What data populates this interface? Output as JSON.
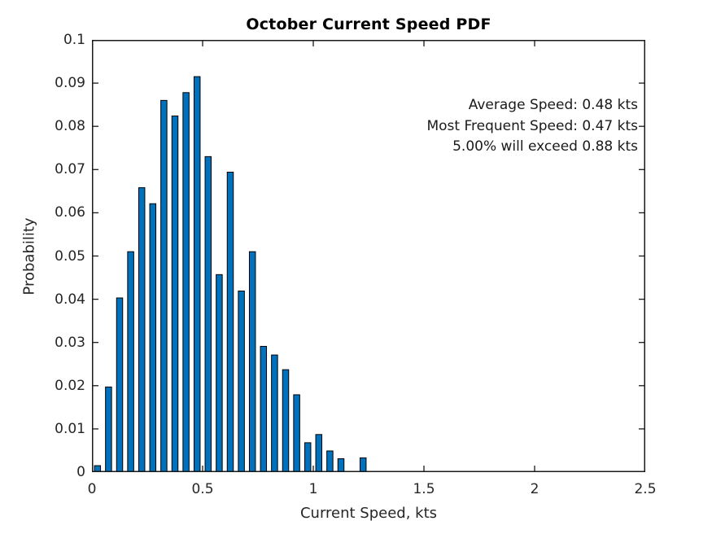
{
  "title": "October Current Speed PDF",
  "chart_data": {
    "type": "bar",
    "title": "October Current Speed PDF",
    "xlabel": "Current Speed, kts",
    "ylabel": "Probability",
    "xlim": [
      0,
      2.5
    ],
    "ylim": [
      0,
      0.1
    ],
    "grid": false,
    "legend": null,
    "bar_color": "#0072BD",
    "bar_edge_color": "#000000",
    "axis_color": "#1a1a1a",
    "tick_text_color": "#262626",
    "bin_width_kts": 0.05,
    "bar_draw_width_kts": 0.0275,
    "x": [
      0.025,
      0.075,
      0.125,
      0.175,
      0.225,
      0.275,
      0.325,
      0.375,
      0.425,
      0.475,
      0.525,
      0.575,
      0.625,
      0.675,
      0.725,
      0.775,
      0.825,
      0.875,
      0.925,
      0.975,
      1.025,
      1.075,
      1.125,
      1.175,
      1.225
    ],
    "values": [
      0.0015,
      0.0197,
      0.0403,
      0.051,
      0.0658,
      0.0621,
      0.086,
      0.0824,
      0.0878,
      0.0915,
      0.073,
      0.0457,
      0.0694,
      0.0419,
      0.051,
      0.0291,
      0.0271,
      0.0237,
      0.0179,
      0.0068,
      0.0087,
      0.0049,
      0.0031,
      0.0,
      0.0033
    ],
    "xticks": [
      0,
      0.5,
      1,
      1.5,
      2,
      2.5
    ],
    "xtick_labels": [
      "0",
      "0.5",
      "1",
      "1.5",
      "2",
      "2.5"
    ],
    "yticks": [
      0,
      0.01,
      0.02,
      0.03,
      0.04,
      0.05,
      0.06,
      0.07,
      0.08,
      0.09,
      0.1
    ],
    "ytick_labels": [
      "0",
      "0.01",
      "0.02",
      "0.03",
      "0.04",
      "0.05",
      "0.06",
      "0.07",
      "0.08",
      "0.09",
      "0.1"
    ],
    "annotations": [
      "Average Speed: 0.48 kts",
      "Most Frequent Speed: 0.47 kts",
      "5.00% will exceed 0.88 kts"
    ]
  }
}
